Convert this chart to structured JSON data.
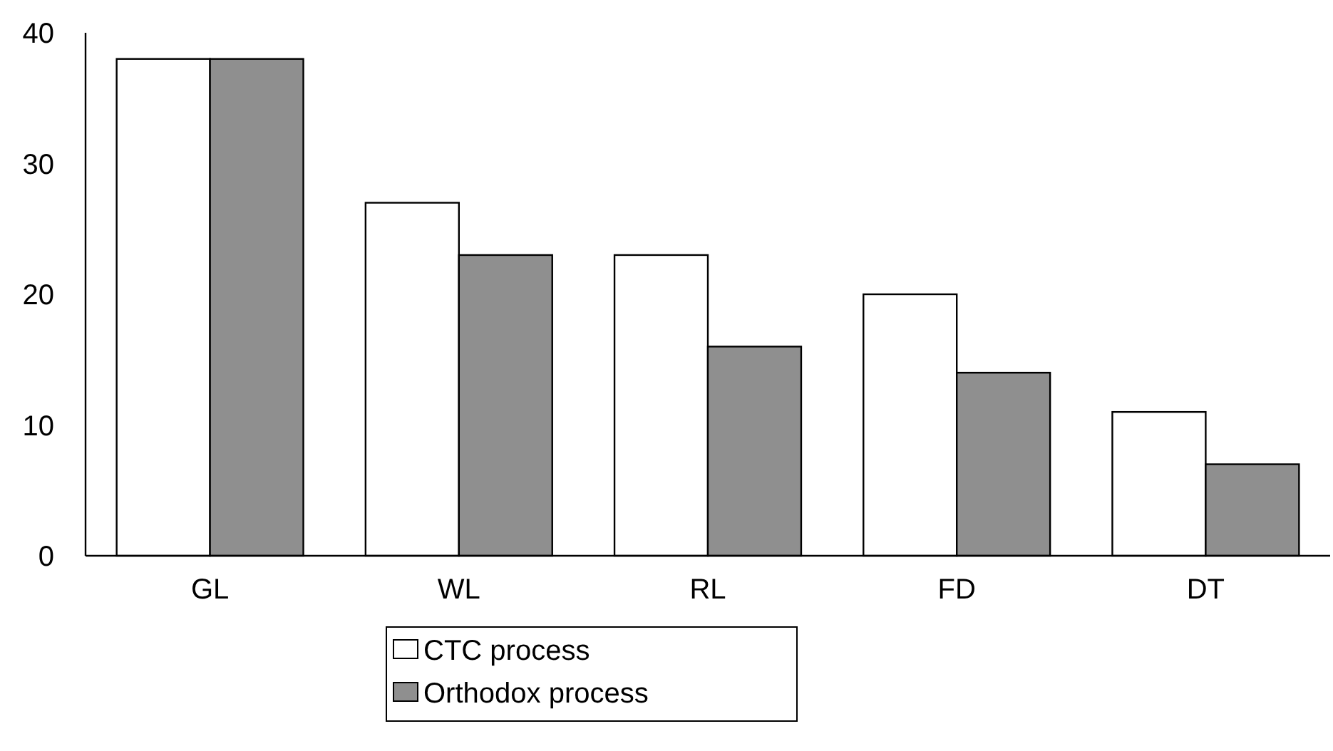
{
  "chart_data": {
    "type": "bar",
    "categories": [
      "GL",
      "WL",
      "RL",
      "FD",
      "DT"
    ],
    "series": [
      {
        "name": "CTC process",
        "color": "#ffffff",
        "values": [
          38,
          27,
          23,
          20,
          11
        ]
      },
      {
        "name": "Orthodox process",
        "color": "#8f8f8f",
        "values": [
          38,
          23,
          16,
          14,
          7
        ]
      }
    ],
    "ylim": [
      0,
      40
    ],
    "yticks": [
      0,
      10,
      20,
      30,
      40
    ],
    "grid": false,
    "legend": "bottom"
  }
}
